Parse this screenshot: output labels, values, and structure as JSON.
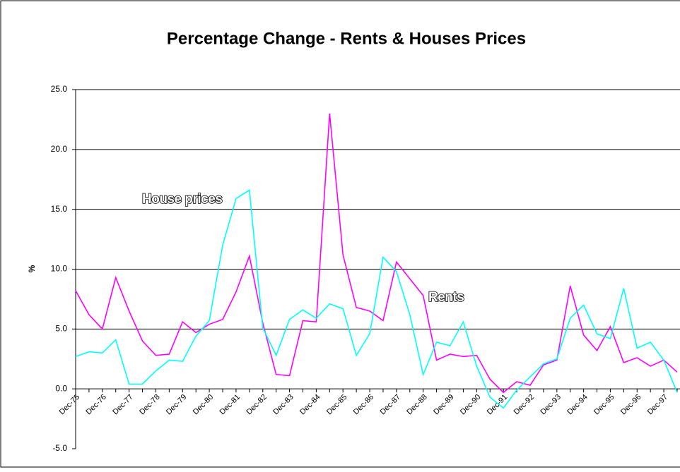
{
  "chart_data": {
    "type": "line",
    "title": "Percentage Change - Rents & Houses Prices",
    "y_label": "%",
    "annotations": [
      "House prices",
      "Rents"
    ],
    "categories": [
      "Dec-75",
      null,
      "Dec-76",
      null,
      "Dec-77",
      null,
      "Dec-78",
      null,
      "Dec-79",
      null,
      "Dec-80",
      null,
      "Dec-81",
      null,
      "Dec-82",
      null,
      "Dec-83",
      null,
      "Dec-84",
      null,
      "Dec-85",
      null,
      "Dec-86",
      null,
      "Dec-87",
      null,
      "Dec-88",
      null,
      "Dec-89",
      null,
      "Dec-90",
      null,
      "Dec-91",
      null,
      "Dec-92",
      null,
      "Dec-93",
      null,
      "Dec-94",
      null,
      "Dec-95",
      null,
      "Dec-96",
      null,
      "Dec-97",
      null
    ],
    "series": [
      {
        "name": "Rents",
        "color": "#ff00ff",
        "values": [
          8.2,
          6.2,
          5.0,
          9.3,
          6.5,
          4.0,
          2.8,
          2.9,
          5.6,
          4.7,
          5.4,
          5.8,
          8.1,
          11.1,
          5.5,
          1.2,
          1.1,
          5.7,
          5.6,
          23.0,
          11.2,
          6.8,
          6.5,
          5.7,
          10.6,
          9.2,
          7.8,
          2.4,
          2.9,
          2.7,
          2.8,
          0.8,
          -0.3,
          0.6,
          0.3,
          2.0,
          2.4,
          8.6,
          4.5,
          3.2,
          5.2,
          2.2,
          2.6,
          1.9,
          2.4,
          1.4
        ]
      },
      {
        "name": "House prices",
        "color": "#00ffff",
        "values": [
          2.7,
          3.1,
          3.0,
          4.1,
          0.4,
          0.4,
          1.5,
          2.4,
          2.3,
          4.4,
          5.7,
          12.0,
          15.9,
          16.6,
          5.1,
          2.8,
          5.8,
          6.6,
          5.9,
          7.1,
          6.7,
          2.8,
          4.6,
          11.0,
          9.8,
          6.2,
          1.2,
          3.9,
          3.6,
          5.6,
          1.9,
          -0.7,
          -1.6,
          -0.1,
          1.0,
          2.1,
          2.5,
          5.9,
          7.0,
          4.6,
          4.2,
          8.4,
          3.4,
          3.9,
          2.4,
          -0.3
        ]
      }
    ],
    "ylim": [
      -5,
      25
    ],
    "yticks": [
      {
        "value": -5,
        "label": "-5.0"
      },
      {
        "value": 0,
        "label": "0.0"
      },
      {
        "value": 5,
        "label": "5.0"
      },
      {
        "value": 10,
        "label": "10.0"
      },
      {
        "value": 15,
        "label": "15.0"
      },
      {
        "value": 20,
        "label": "20.0"
      },
      {
        "value": 25,
        "label": "25.0"
      }
    ],
    "grid": true
  }
}
